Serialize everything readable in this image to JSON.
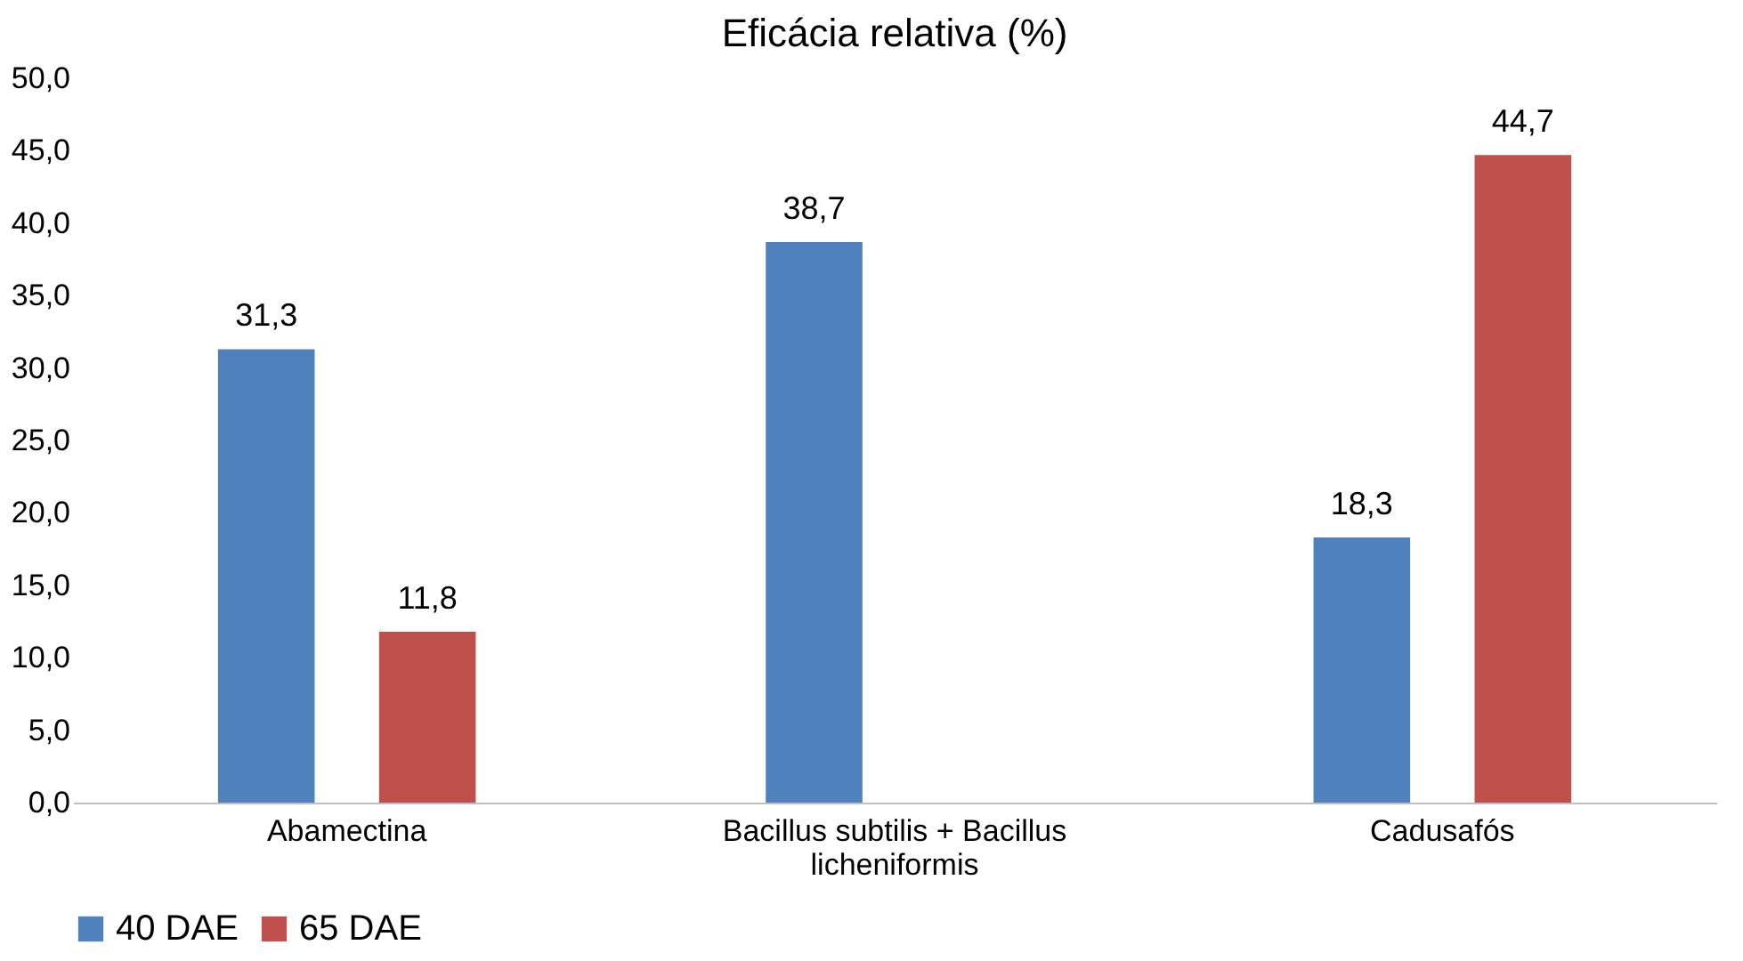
{
  "chart_data": {
    "type": "bar",
    "title": "Eficácia relativa (%)",
    "categories": [
      "Abamectina",
      "Bacillus subtilis + Bacillus licheniformis",
      "Cadusafós"
    ],
    "series": [
      {
        "name": "40 DAE",
        "color": "#4f81bd",
        "values": [
          31.3,
          38.7,
          18.3
        ],
        "value_labels": [
          "31,3",
          "38,7",
          "18,3"
        ]
      },
      {
        "name": "65 DAE",
        "color": "#c0504d",
        "values": [
          11.8,
          null,
          44.7
        ],
        "value_labels": [
          "11,8",
          null,
          "44,7"
        ]
      }
    ],
    "ylim": [
      0,
      50
    ],
    "yticks": [
      {
        "value": 0,
        "label": "0,0"
      },
      {
        "value": 5,
        "label": "5,0"
      },
      {
        "value": 10,
        "label": "10,0"
      },
      {
        "value": 15,
        "label": "15,0"
      },
      {
        "value": 20,
        "label": "20,0"
      },
      {
        "value": 25,
        "label": "25,0"
      },
      {
        "value": 30,
        "label": "30,0"
      },
      {
        "value": 35,
        "label": "35,0"
      },
      {
        "value": 40,
        "label": "40,0"
      },
      {
        "value": 45,
        "label": "45,0"
      },
      {
        "value": 50,
        "label": "50,0"
      }
    ],
    "grid": false,
    "legend": "bottom"
  }
}
